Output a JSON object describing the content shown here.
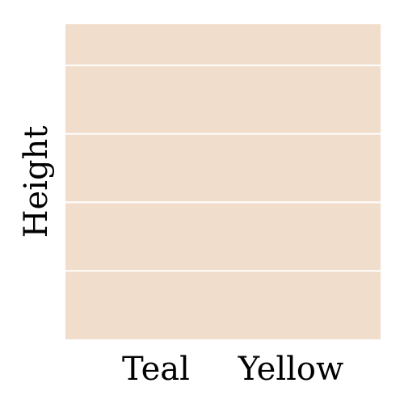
{
  "chart_data": {
    "type": "bar",
    "categories": [
      "Teal",
      "Yellow"
    ],
    "values": [
      null,
      null
    ],
    "xlabel": "",
    "ylabel": "Height",
    "ylim": [
      0,
      4.6
    ],
    "grid": true,
    "legend": "none",
    "colors": {
      "panel_background": "#f0ddcc",
      "gridline": "#ffffff",
      "text": "#000000"
    }
  }
}
